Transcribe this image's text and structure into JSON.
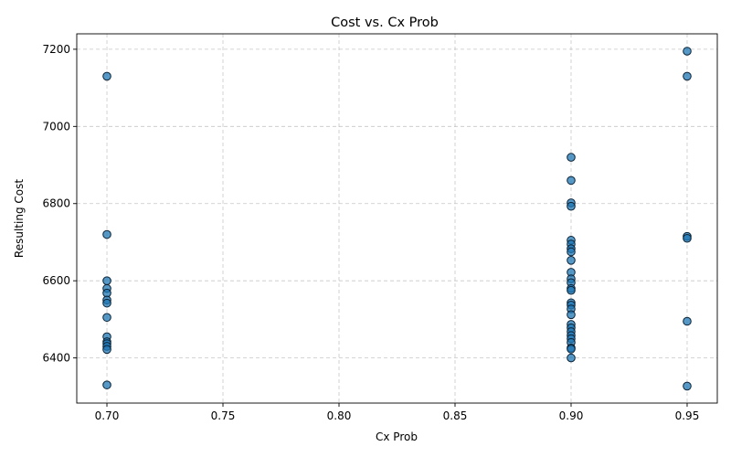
{
  "chart_data": {
    "type": "scatter",
    "title": "Cost vs. Cx Prob",
    "xlabel": "Cx Prob",
    "ylabel": "Resulting Cost",
    "xlim": [
      0.687,
      0.963
    ],
    "ylim": [
      6283,
      7240
    ],
    "xticks": [
      0.7,
      0.75,
      0.8,
      0.85,
      0.9,
      0.95
    ],
    "xtick_labels": [
      "0.70",
      "0.75",
      "0.80",
      "0.85",
      "0.90",
      "0.95"
    ],
    "yticks": [
      6400,
      6600,
      6800,
      7000,
      7200
    ],
    "ytick_labels": [
      "6400",
      "6600",
      "6800",
      "7000",
      "7200"
    ],
    "grid": true,
    "marker_color": "#1f77b4",
    "marker_alpha": 0.75,
    "points": [
      {
        "x": 0.7,
        "y": 7130
      },
      {
        "x": 0.7,
        "y": 6720
      },
      {
        "x": 0.7,
        "y": 6600
      },
      {
        "x": 0.7,
        "y": 6580
      },
      {
        "x": 0.7,
        "y": 6568
      },
      {
        "x": 0.7,
        "y": 6550
      },
      {
        "x": 0.7,
        "y": 6542
      },
      {
        "x": 0.7,
        "y": 6505
      },
      {
        "x": 0.7,
        "y": 6455
      },
      {
        "x": 0.7,
        "y": 6442
      },
      {
        "x": 0.7,
        "y": 6437
      },
      {
        "x": 0.7,
        "y": 6430
      },
      {
        "x": 0.7,
        "y": 6422
      },
      {
        "x": 0.7,
        "y": 6330
      },
      {
        "x": 0.9,
        "y": 6920
      },
      {
        "x": 0.9,
        "y": 6860
      },
      {
        "x": 0.9,
        "y": 6802
      },
      {
        "x": 0.9,
        "y": 6793
      },
      {
        "x": 0.9,
        "y": 6705
      },
      {
        "x": 0.9,
        "y": 6695
      },
      {
        "x": 0.9,
        "y": 6683
      },
      {
        "x": 0.9,
        "y": 6675
      },
      {
        "x": 0.9,
        "y": 6653
      },
      {
        "x": 0.9,
        "y": 6622
      },
      {
        "x": 0.9,
        "y": 6605
      },
      {
        "x": 0.9,
        "y": 6595
      },
      {
        "x": 0.9,
        "y": 6580
      },
      {
        "x": 0.9,
        "y": 6575
      },
      {
        "x": 0.9,
        "y": 6543
      },
      {
        "x": 0.9,
        "y": 6537
      },
      {
        "x": 0.9,
        "y": 6527
      },
      {
        "x": 0.9,
        "y": 6512
      },
      {
        "x": 0.9,
        "y": 6487
      },
      {
        "x": 0.9,
        "y": 6478
      },
      {
        "x": 0.9,
        "y": 6468
      },
      {
        "x": 0.9,
        "y": 6458
      },
      {
        "x": 0.9,
        "y": 6450
      },
      {
        "x": 0.9,
        "y": 6440
      },
      {
        "x": 0.9,
        "y": 6426
      },
      {
        "x": 0.9,
        "y": 6423
      },
      {
        "x": 0.9,
        "y": 6400
      },
      {
        "x": 0.95,
        "y": 7195
      },
      {
        "x": 0.95,
        "y": 7130
      },
      {
        "x": 0.95,
        "y": 6715
      },
      {
        "x": 0.95,
        "y": 6710
      },
      {
        "x": 0.95,
        "y": 6495
      },
      {
        "x": 0.95,
        "y": 6327
      }
    ]
  }
}
